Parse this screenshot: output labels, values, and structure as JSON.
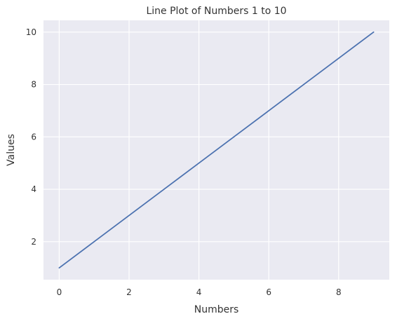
{
  "chart_data": {
    "type": "line",
    "title": "Line Plot of Numbers 1 to 10",
    "xlabel": "Numbers",
    "ylabel": "Values",
    "x": [
      0,
      1,
      2,
      3,
      4,
      5,
      6,
      7,
      8,
      9
    ],
    "series": [
      {
        "values": [
          1,
          2,
          3,
          4,
          5,
          6,
          7,
          8,
          9,
          10
        ]
      }
    ],
    "xlim": [
      -0.45,
      9.45
    ],
    "ylim": [
      0.55,
      10.45
    ],
    "xticks": [
      0,
      2,
      4,
      6,
      8
    ],
    "yticks": [
      2,
      4,
      6,
      8,
      10
    ],
    "grid": true,
    "colors": {
      "plot_background": "#EAEAF2",
      "grid": "#FFFFFF",
      "line": "#4C72B0",
      "text": "#333333"
    }
  }
}
